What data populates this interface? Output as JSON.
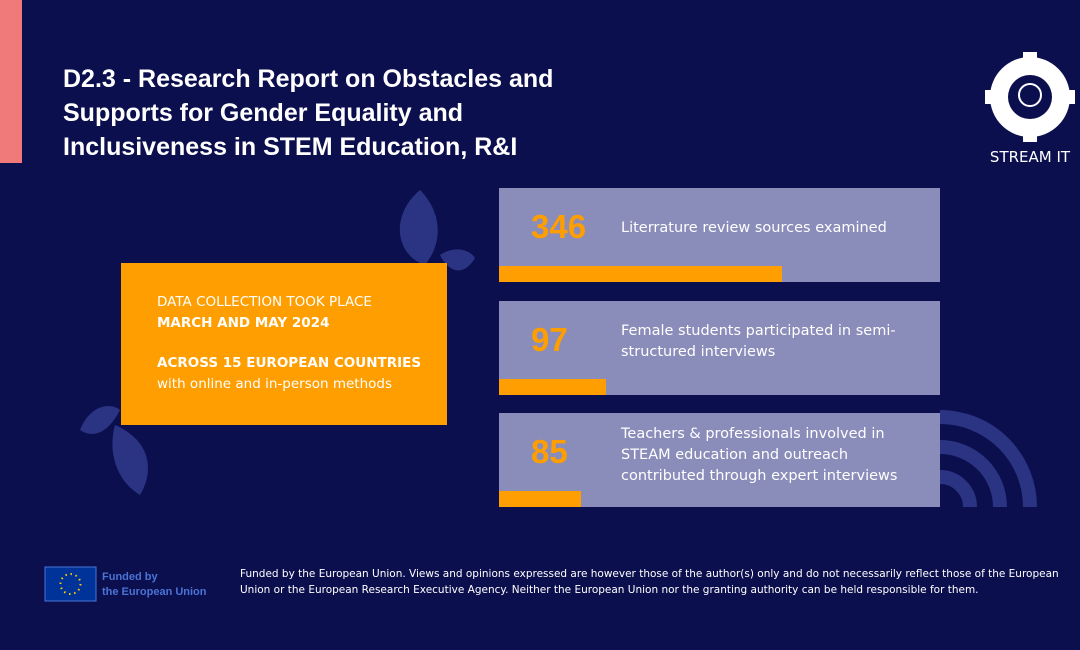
{
  "header": {
    "title_lines": [
      "D2.3 - Research Report on Obstacles and",
      "Supports for Gender Equality and",
      "Inclusiveness in STEM Education, R&I"
    ]
  },
  "logo": {
    "label": "STREAM IT"
  },
  "highlight": {
    "line1": "DATA COLLECTION TOOK PLACE",
    "line2": "MARCH AND MAY 2024",
    "line3": "ACROSS 15 EUROPEAN COUNTRIES",
    "line4": "with online and in-person methods"
  },
  "stats": [
    {
      "value": 346,
      "label": "Literrature review sources examined"
    },
    {
      "value": 97,
      "label": "Female students participated in semi-structured interviews"
    },
    {
      "value": 85,
      "label": "Teachers & professionals involved in STEAM education and outreach contributed through expert interviews"
    }
  ],
  "footer": {
    "funded_lines": [
      "Funded by",
      "the European Union"
    ],
    "disclaimer": "Funded by the European Union. Views and opinions expressed are however those of the author(s) only and do not necessarily reflect those of the European Union or the European Research Executive Agency. Neither the European Union nor the granting authority can be held responsible for them."
  }
}
